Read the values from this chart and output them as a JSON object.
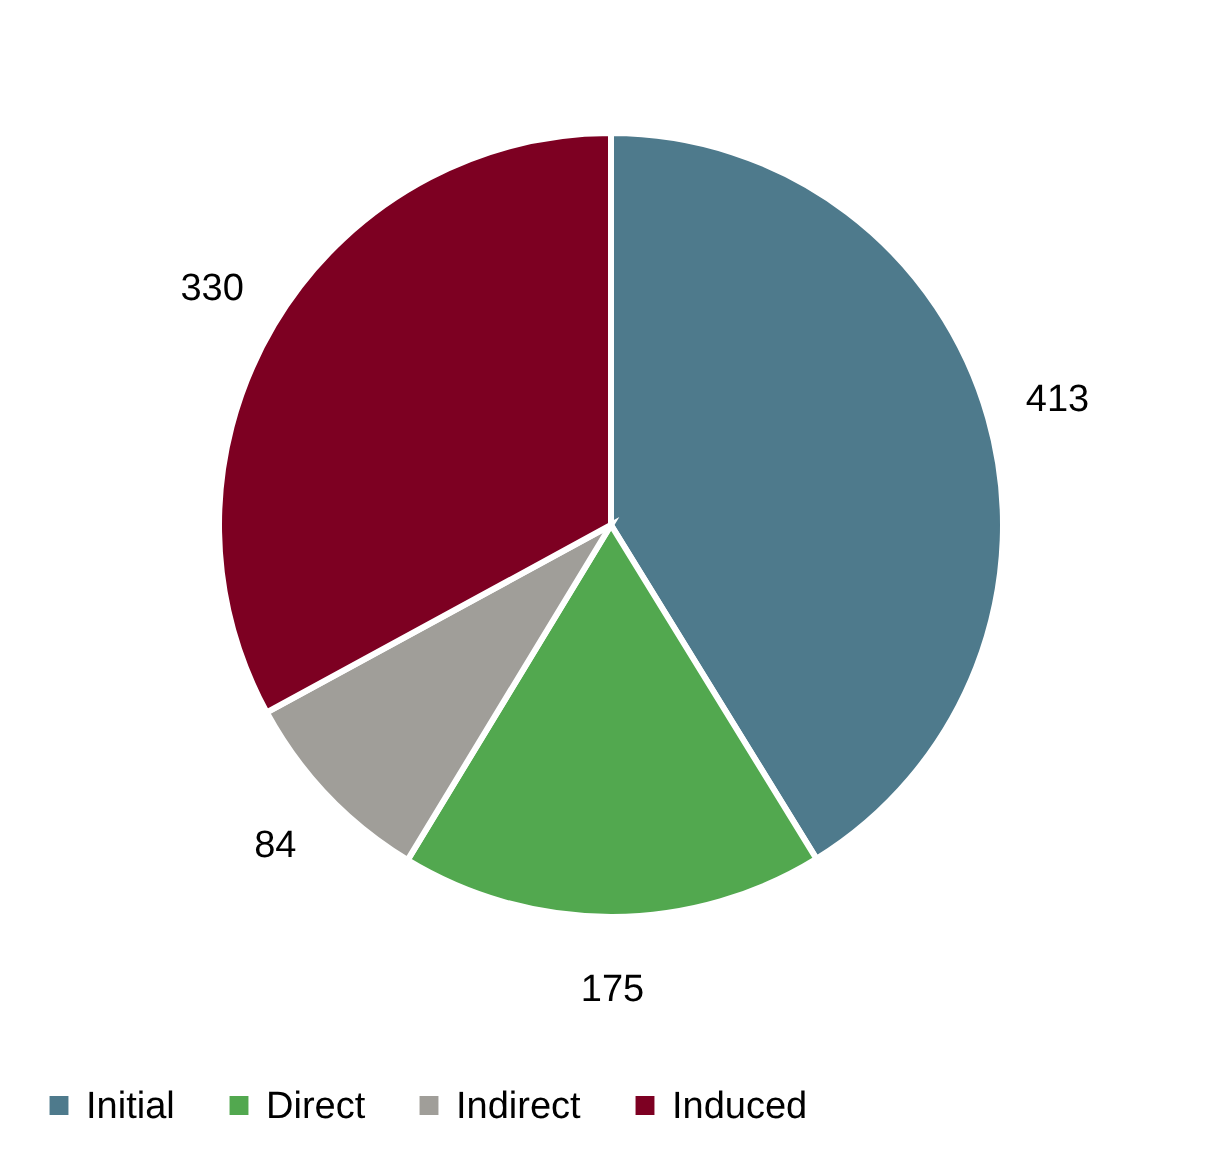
{
  "chart_data": {
    "type": "pie",
    "categories": [
      "Initial",
      "Direct",
      "Indirect",
      "Induced"
    ],
    "values": [
      413,
      175,
      84,
      330
    ],
    "colors": [
      "#4e7a8c",
      "#52a84f",
      "#a09e99",
      "#7d0022"
    ],
    "data_labels": true,
    "legend": "bottom"
  }
}
